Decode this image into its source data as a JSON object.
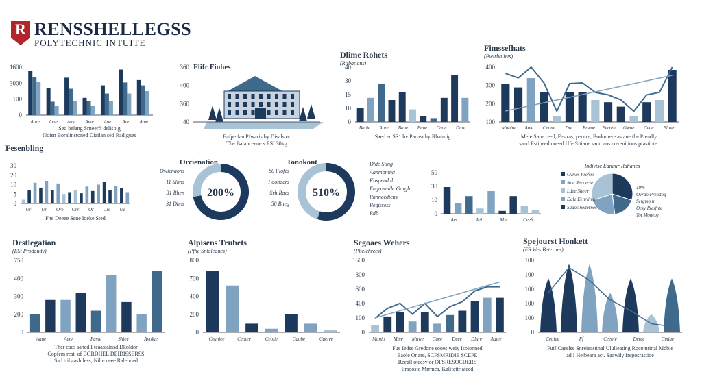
{
  "header": {
    "logo_letter": "R",
    "title": "RENSSHELLEGSS",
    "subtitle": "POLYTECHNIC INTUITE"
  },
  "colors": {
    "navy": "#1d3a5c",
    "mid": "#3f6a8c",
    "light": "#7fa3c0",
    "pale": "#a9c3d6",
    "red": "#b0262b"
  },
  "chart_data": [
    {
      "id": "c1",
      "type": "bar",
      "title": "",
      "ylabels": [
        "1600",
        "3000",
        "100",
        "0"
      ],
      "series": [
        {
          "values": [
            92,
            56,
            78,
            36,
            62,
            95,
            73
          ],
          "color": "navy"
        },
        {
          "values": [
            80,
            28,
            55,
            30,
            45,
            68,
            62
          ],
          "color": "mid"
        },
        {
          "values": [
            70,
            20,
            30,
            20,
            30,
            45,
            50
          ],
          "color": "light"
        }
      ],
      "xlabels": [
        "Aure",
        "Arse",
        "Ame",
        "Ame",
        "Ane",
        "Are",
        "Ame"
      ],
      "caption": [
        "Sed belang Srneerft delisbig",
        "Noisn Boralinstoned Diailan sed Radigues"
      ]
    },
    {
      "id": "c2",
      "type": "illustration",
      "title": "Flifr Fiohes",
      "ylabels": [
        "360",
        "400",
        "360",
        "40"
      ],
      "caption": [
        "Eafpe fan Pfwaris by Disalstor",
        "The Balanceene s ESI 30kg"
      ]
    },
    {
      "id": "c3",
      "type": "bar",
      "title": "Dlime Rohets",
      "subtitle": "(Rtibatians)",
      "ylabels": [
        "40",
        "30",
        "15",
        "10",
        "0"
      ],
      "values": [
        25,
        44,
        70,
        40,
        55,
        23,
        10,
        7,
        44,
        85,
        44
      ],
      "colors": [
        "navy",
        "light",
        "mid",
        "navy",
        "navy",
        "pale",
        "navy",
        "mid",
        "navy",
        "navy",
        "light"
      ],
      "xlabels": [
        "Bauie",
        "Aure",
        "Baue",
        "Baue",
        "Caue",
        "Dare"
      ],
      "caption": [
        "Saed er SS1 bv Parreathy Rhaimig"
      ]
    },
    {
      "id": "c4",
      "type": "bar-line",
      "title": "Fimssefhats",
      "subtitle": "(Pwlrhaliets)",
      "ylabels": [
        "400",
        "300",
        "200",
        "100"
      ],
      "values": [
        70,
        63,
        80,
        55,
        10,
        54,
        55,
        40,
        36,
        28,
        10,
        36,
        40,
        95
      ],
      "colors": [
        "navy",
        "navy",
        "light",
        "navy",
        "pale",
        "navy",
        "navy",
        "pale",
        "navy",
        "navy",
        "pale",
        "navy",
        "pale",
        "navy"
      ],
      "xlabels": [
        "Muoine",
        "Ame",
        "Ceone",
        "Dre",
        "Erwoe",
        "Ferren",
        "Gwae",
        "Ceoe",
        "Elave"
      ],
      "caption": [
        "Mele Sane reed, Fes ras, peccre, Bodomere as ane the Preadly",
        "sand Estipeed ooeed Ufe Sitiane sand ans covenilions prastiote."
      ]
    },
    {
      "id": "c5",
      "type": "bar",
      "title": "Fesenbling",
      "ylabels": [
        "30",
        "20",
        "10",
        "5",
        "0"
      ],
      "values": [
        10,
        35,
        55,
        42,
        60,
        35,
        53,
        25,
        30,
        35,
        27,
        45,
        33,
        50,
        58,
        35,
        46,
        40,
        30
      ],
      "colors": [
        "pale",
        "navy",
        "light",
        "navy",
        "light",
        "navy",
        "light",
        "pale",
        "navy",
        "pale",
        "navy",
        "light",
        "navy",
        "light",
        "navy",
        "navy",
        "light",
        "navy",
        "light"
      ],
      "xlabels": [
        "Ur",
        "Ur",
        "Ore",
        "Orr",
        "Or",
        "Ure",
        "Ue"
      ],
      "caption": [
        "Fhe Deeee Sene Ioeke Sted"
      ]
    },
    {
      "id": "d1",
      "type": "donut",
      "title": "Orcienation",
      "percent": "200%",
      "value": 0.72,
      "labels": [
        "Owienaons",
        "11 Slhns",
        "31 Rhen",
        "31 Dhns"
      ]
    },
    {
      "id": "d2",
      "type": "donut",
      "title": "Tonokont",
      "percent": "510%",
      "value": 0.55,
      "labels": [
        "80 Flofes",
        "Foonders",
        "Srh Raes",
        "50 Bneg"
      ]
    },
    {
      "id": "c6",
      "type": "bar",
      "title": "",
      "ylabels": [
        "50",
        "30",
        "10",
        "0"
      ],
      "labels_left": [
        "Dlde Sting",
        "Aanmoning",
        "Kaspendal",
        "Engrosmile Gargh",
        "Rhnneediens",
        "Regissess",
        "Rdb"
      ],
      "values": [
        65,
        25,
        43,
        13,
        55,
        7,
        43,
        20,
        10
      ],
      "colors": [
        "navy",
        "light",
        "mid",
        "pale",
        "light",
        "navy",
        "navy",
        "pale",
        "pale"
      ],
      "xlabels": [
        "Ael",
        "Ael",
        "Mir",
        "Ceefr"
      ]
    },
    {
      "id": "pie1",
      "type": "pie",
      "title": "Indivise Eangur Rahanes",
      "slices": [
        {
          "value": 0.3,
          "color": "navy"
        },
        {
          "value": 0.18,
          "color": "mid"
        },
        {
          "value": 0.22,
          "color": "light"
        },
        {
          "value": 0.3,
          "color": "pale"
        }
      ],
      "legend": [
        "Ovrws Prefsss",
        "Nae Recoecte",
        "Ldee Sheee",
        "Dale Eenrlimg",
        "Saaos hedernes"
      ],
      "notes": [
        "10%",
        "Ovrao Prendng",
        "Sergmo tn",
        "Oesy Rtesfnte",
        "Tot Moneby"
      ]
    },
    {
      "id": "c7",
      "type": "bar",
      "title": "Destlegation",
      "subtitle": "(ESt Prodoudy)",
      "ylabels": [
        "750",
        "400",
        "300",
        "200",
        "0"
      ],
      "values": [
        25,
        45,
        45,
        55,
        30,
        80,
        42,
        25,
        85
      ],
      "colors": [
        "mid",
        "navy",
        "light",
        "navy",
        "mid",
        "light",
        "navy",
        "light",
        "mid"
      ],
      "xlabels": [
        "Aane",
        "Aenr",
        "Pavie",
        "Shiee",
        "Anolae"
      ],
      "caption": [
        "Ther caes saned I teaasialnsd Dkoldor",
        "Copfem rest, of BORDHEL DEIDISSERSS",
        "Sad tribaashlless, Nilte ceee Ralended"
      ]
    },
    {
      "id": "c8",
      "type": "bar",
      "title": "Alpisens Trubets",
      "subtitle": "(Pfhe Sntoleaues)",
      "ylabels": [
        "800",
        "700",
        "400",
        "200",
        "0"
      ],
      "values": [
        85,
        65,
        12,
        5,
        25,
        12,
        3
      ],
      "colors": [
        "navy",
        "light",
        "navy",
        "light",
        "navy",
        "light",
        "pale"
      ],
      "xlabels": [
        "Ceaniee",
        "Ceotee",
        "Ceolie",
        "Caohe",
        "Caeree"
      ]
    },
    {
      "id": "c9",
      "type": "bar-line",
      "title": "Segoaes Wehers",
      "subtitle": "(Pbelchrees)",
      "ylabels": [
        "1600",
        "800",
        "600",
        "400",
        "100",
        "0"
      ],
      "values": [
        10,
        22,
        28,
        15,
        28,
        12,
        24,
        30,
        43,
        48,
        48
      ],
      "colors": [
        "pale",
        "navy",
        "navy",
        "light",
        "navy",
        "light",
        "mid",
        "navy",
        "navy",
        "light",
        "navy"
      ],
      "xlabels": [
        "Munio",
        "Mme",
        "Muwe",
        "Caee",
        "Deee",
        "Dlure",
        "Aatee"
      ],
      "caption": [
        "Fue Iedse Gredone sooes weiy Isbionned",
        "Eaole Onare, SCFSMRIDIE SCEPE",
        "Reeall oteesy or OFSRESOCDERS",
        "Ersooste Mrrmes, Kalifcttr ateed"
      ]
    },
    {
      "id": "c10",
      "type": "triangle",
      "title": "Spejourst Honkett",
      "subtitle": "(ES Wes Beterues)",
      "ylabels": [
        "100",
        "100",
        "100",
        "100",
        "100",
        "0"
      ],
      "values": [
        75,
        95,
        95,
        55,
        75,
        25,
        75
      ],
      "colors": [
        "navy",
        "navy",
        "light",
        "light",
        "navy",
        "pale",
        "mid"
      ],
      "xlabels": [
        "Ceuiee",
        "Ff",
        "Ceeoie",
        "Deree",
        "Cmiae"
      ],
      "caption": [
        "Fuif Caeelse Snreieastinal Ululieating Rocomtinal Mdbie",
        "ad I Helbeara act. Saawily Ireposrastioe"
      ]
    }
  ]
}
